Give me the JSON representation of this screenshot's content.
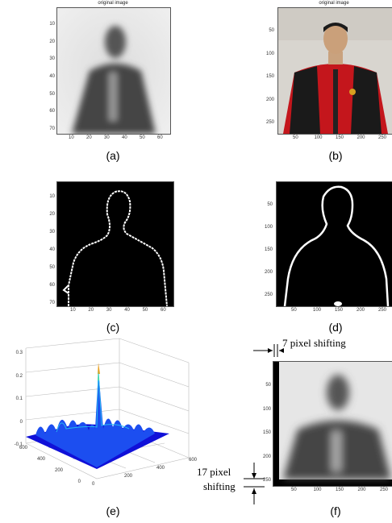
{
  "panels": {
    "a": {
      "title": "original image",
      "caption": "(a)",
      "xticks": [
        "10",
        "20",
        "30",
        "40",
        "50",
        "60"
      ],
      "yticks": [
        "10",
        "20",
        "30",
        "40",
        "50",
        "60",
        "70"
      ]
    },
    "b": {
      "title": "original image",
      "caption": "(b)",
      "xticks": [
        "50",
        "100",
        "150",
        "200",
        "250"
      ],
      "yticks": [
        "50",
        "100",
        "150",
        "200",
        "250"
      ]
    },
    "c": {
      "caption": "(c)",
      "xticks": [
        "10",
        "20",
        "30",
        "40",
        "50",
        "60"
      ],
      "yticks": [
        "10",
        "20",
        "30",
        "40",
        "50",
        "60",
        "70"
      ]
    },
    "d": {
      "caption": "(d)",
      "xticks": [
        "50",
        "100",
        "150",
        "200",
        "250"
      ],
      "yticks": [
        "50",
        "100",
        "150",
        "200",
        "250"
      ]
    },
    "e": {
      "caption": "(e)",
      "zticks": [
        "0.3",
        "0.2",
        "0.1",
        "0",
        "-0.1"
      ],
      "xticks": [
        "0",
        "200",
        "400",
        "600"
      ],
      "yticks": [
        "600",
        "400",
        "200",
        "0"
      ]
    },
    "f": {
      "caption": "(f)",
      "xticks": [
        "50",
        "100",
        "150",
        "200",
        "250"
      ],
      "yticks": [
        "50",
        "100",
        "150",
        "200",
        "250"
      ],
      "top_note": "7 pixel shifting",
      "side_note_1": "17 pixel",
      "side_note_2": "shifting"
    }
  }
}
